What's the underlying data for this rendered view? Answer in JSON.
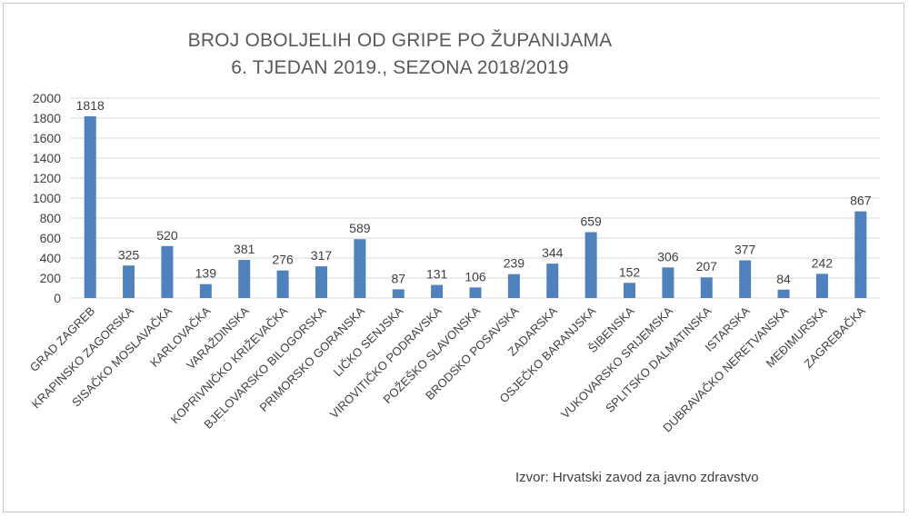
{
  "chart_data": {
    "type": "bar",
    "title_line1": "BROJ OBOLJELIH OD GRIPE PO ŽUPANIJAMA",
    "title_line2": "6. TJEDAN 2019., SEZONA 2018/2019",
    "source": "Izvor: Hrvatski zavod za javno zdravstvo",
    "categories": [
      "GRAD ZAGREB",
      "KRAPINSKO ZAGORSKA",
      "SISAČKO MOSLAVAČKA",
      "KARLOVAČKA",
      "VARAŽDINSKA",
      "KOPRIVNIČKO KRIŽEVAČKA",
      "BJELOVARSKO BILOGORSKA",
      "PRIMORSKO GORANSKA",
      "LIČKO SENJSKA",
      "VIROVITIČKO PODRAVSKA",
      "POŽEŠKO SLAVONSKA",
      "BRODSKO POSAVSKA",
      "ZADARSKA",
      "OSJEČKO BARANJSKA",
      "ŠIBENSKA",
      "VUKOVARSKO SRIJEMSKA",
      "SPLITSKO DALMATINSKA",
      "ISTARSKA",
      "DUBRAVAČKO NERETVANSKA",
      "MEĐIMURSKA",
      "ZAGREBAČKA"
    ],
    "values": [
      1818,
      325,
      520,
      139,
      381,
      276,
      317,
      589,
      87,
      131,
      106,
      239,
      344,
      659,
      152,
      306,
      207,
      377,
      84,
      242,
      867
    ],
    "ylim": [
      0,
      2000
    ],
    "yticks": [
      0,
      200,
      400,
      600,
      800,
      1000,
      1200,
      1400,
      1600,
      1800,
      2000
    ],
    "grid": true,
    "bar_color": "#4f81bd",
    "grid_color": "#d9d9d9"
  }
}
